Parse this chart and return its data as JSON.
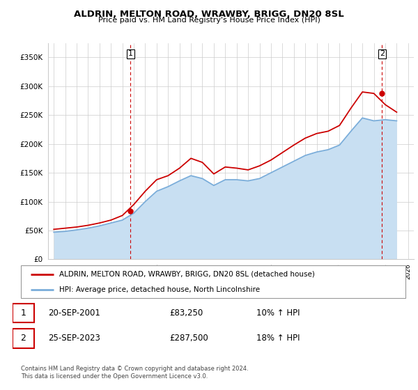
{
  "title": "ALDRIN, MELTON ROAD, WRAWBY, BRIGG, DN20 8SL",
  "subtitle": "Price paid vs. HM Land Registry's House Price Index (HPI)",
  "ytick_values": [
    0,
    50000,
    100000,
    150000,
    200000,
    250000,
    300000,
    350000
  ],
  "ylim": [
    0,
    375000
  ],
  "xlim_start": 1994.5,
  "xlim_end": 2026.5,
  "sale1": {
    "date": "20-SEP-2001",
    "price": 83250,
    "label": "1",
    "year": 2001.72
  },
  "sale2": {
    "date": "25-SEP-2023",
    "price": 287500,
    "label": "2",
    "year": 2023.72
  },
  "legend_house_label": "ALDRIN, MELTON ROAD, WRAWBY, BRIGG, DN20 8SL (detached house)",
  "legend_hpi_label": "HPI: Average price, detached house, North Lincolnshire",
  "table_row1": [
    "1",
    "20-SEP-2001",
    "£83,250",
    "10% ↑ HPI"
  ],
  "table_row2": [
    "2",
    "25-SEP-2023",
    "£287,500",
    "18% ↑ HPI"
  ],
  "footer": "Contains HM Land Registry data © Crown copyright and database right 2024.\nThis data is licensed under the Open Government Licence v3.0.",
  "house_color": "#cc0000",
  "hpi_color": "#7aadda",
  "hpi_fill_color": "#c8dff2",
  "grid_color": "#cccccc",
  "dashed_line_color": "#cc0000",
  "hpi_data": {
    "years": [
      1995,
      1996,
      1997,
      1998,
      1999,
      2000,
      2001,
      2002,
      2003,
      2004,
      2005,
      2006,
      2007,
      2008,
      2009,
      2010,
      2011,
      2012,
      2013,
      2014,
      2015,
      2016,
      2017,
      2018,
      2019,
      2020,
      2021,
      2022,
      2023,
      2024,
      2025
    ],
    "values": [
      47000,
      48500,
      51000,
      54000,
      58000,
      63000,
      68000,
      80000,
      100000,
      118000,
      126000,
      136000,
      145000,
      140000,
      128000,
      138000,
      138000,
      136000,
      140000,
      150000,
      160000,
      170000,
      180000,
      186000,
      190000,
      198000,
      222000,
      245000,
      240000,
      242000,
      240000
    ]
  },
  "house_price_data": {
    "years": [
      1995,
      1996,
      1997,
      1998,
      1999,
      2000,
      2001,
      2002,
      2003,
      2004,
      2005,
      2006,
      2007,
      2008,
      2009,
      2010,
      2011,
      2012,
      2013,
      2014,
      2015,
      2016,
      2017,
      2018,
      2019,
      2020,
      2021,
      2022,
      2023,
      2024,
      2025
    ],
    "values": [
      52000,
      54000,
      56000,
      59000,
      63000,
      68000,
      76000,
      95000,
      118000,
      138000,
      145000,
      158000,
      175000,
      168000,
      148000,
      160000,
      158000,
      155000,
      162000,
      172000,
      185000,
      198000,
      210000,
      218000,
      222000,
      232000,
      262000,
      290000,
      287500,
      268000,
      255000
    ]
  }
}
